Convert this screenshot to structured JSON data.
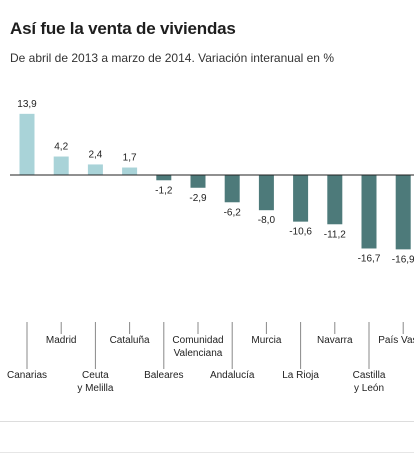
{
  "chart_data": {
    "type": "bar",
    "title": "Así fue la venta de viviendas",
    "subtitle": "De abril de 2013 a marzo de 2014. Variación interanual en %",
    "categories": [
      [
        "Canarias"
      ],
      [
        "Madrid"
      ],
      [
        "Ceuta",
        "y Melilla"
      ],
      [
        "Cataluña"
      ],
      [
        "Baleares"
      ],
      [
        "Comunidad",
        "Valenciana"
      ],
      [
        "Andalucía"
      ],
      [
        "Murcia"
      ],
      [
        "La Rioja"
      ],
      [
        "Navarra"
      ],
      [
        "Castilla",
        "y León"
      ],
      [
        "País Vasco"
      ]
    ],
    "values": [
      13.9,
      4.2,
      2.4,
      1.7,
      -1.2,
      -2.9,
      -6.2,
      -8.0,
      -10.6,
      -11.2,
      -16.7,
      -16.9
    ],
    "value_labels": [
      "13,9",
      "4,2",
      "2,4",
      "1,7",
      "-1,2",
      "-2,9",
      "-6,2",
      "-8,0",
      "-10,6",
      "-11,2",
      "-16,7",
      "-16,9"
    ],
    "colors": {
      "positive": "#a9d3d8",
      "negative": "#4d7a7a",
      "axis": "#222222",
      "tick": "#888888"
    }
  }
}
